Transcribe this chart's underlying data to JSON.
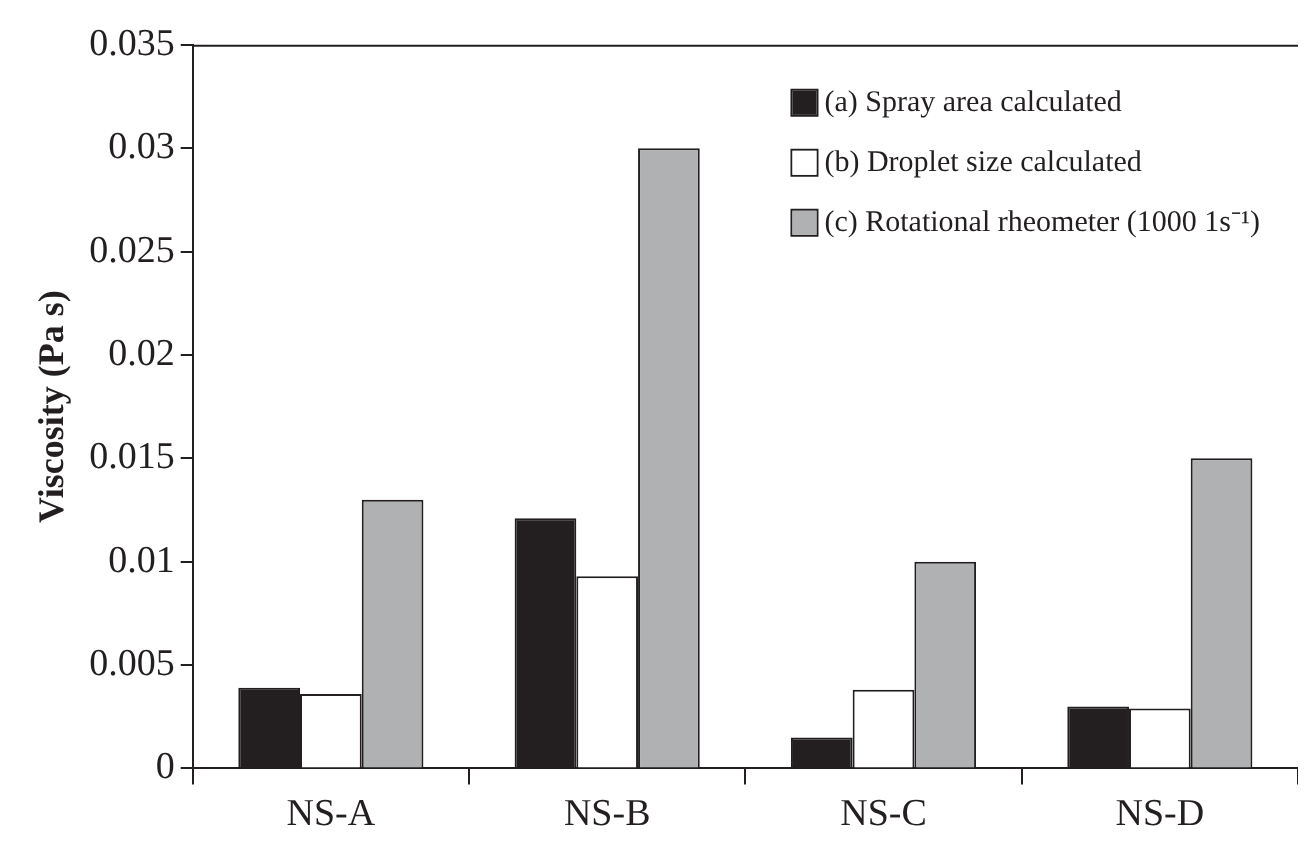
{
  "chart_data": {
    "type": "bar",
    "ylabel": "Viscosity (Pa s)",
    "categories": [
      "NS-A",
      "NS-B",
      "NS-C",
      "NS-D"
    ],
    "series": [
      {
        "name": "(a) Spray area calculated",
        "color": "#231f20",
        "values": [
          0.0039,
          0.0121,
          0.0015,
          0.003
        ]
      },
      {
        "name": "(b) Droplet size calculated",
        "color": "#ffffff",
        "values": [
          0.0036,
          0.0093,
          0.0038,
          0.0029
        ]
      },
      {
        "name": "(c) Rotational rheometer (1000 1s⁻¹)",
        "color": "#b0b1b3",
        "values": [
          0.013,
          0.03,
          0.01,
          0.015
        ]
      }
    ],
    "ylim": [
      0,
      0.035
    ],
    "yticks": [
      0,
      0.005,
      0.01,
      0.015,
      0.02,
      0.025,
      0.03,
      0.035
    ],
    "grid": false,
    "legend": "top right"
  }
}
